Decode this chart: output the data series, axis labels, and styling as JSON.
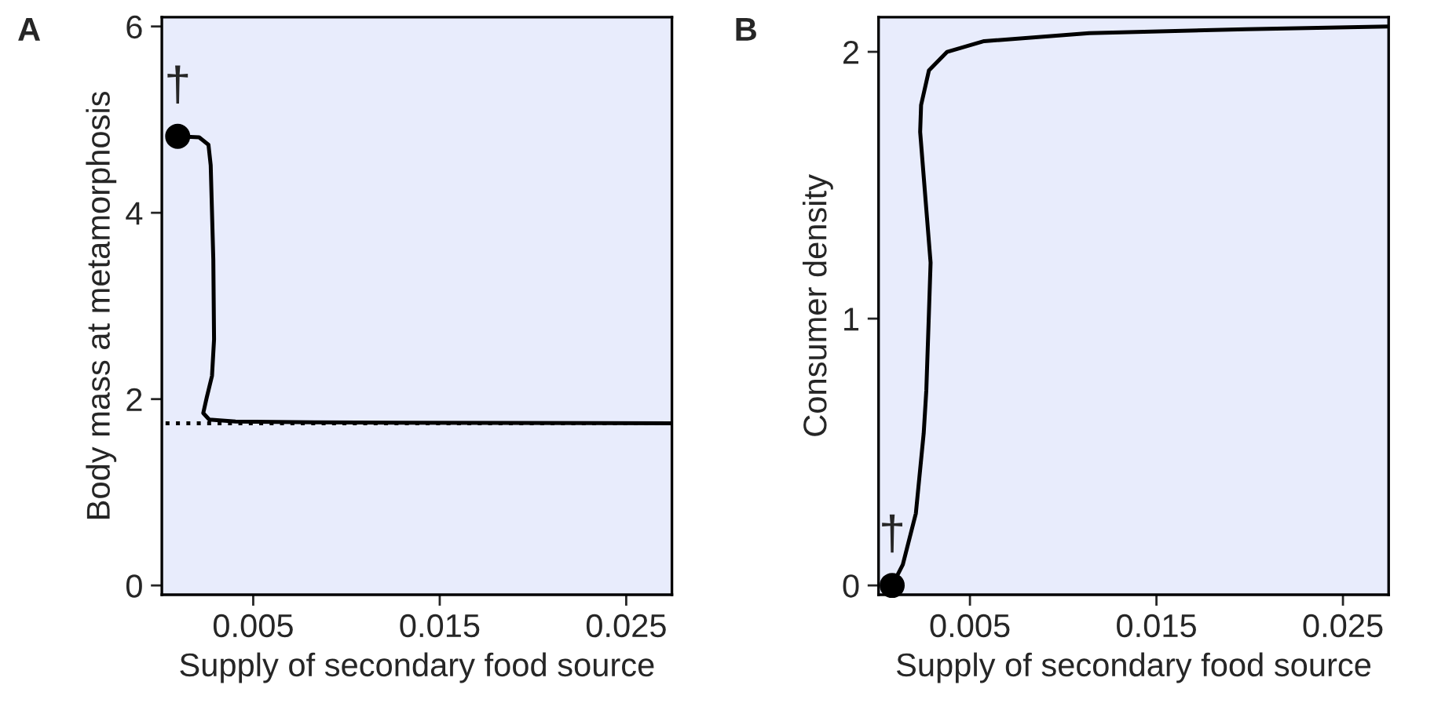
{
  "chart_data": [
    {
      "type": "line",
      "title": "A",
      "xlabel": "Supply of secondary food source",
      "ylabel": "Body mass at metamorphosis",
      "xlim": [
        0.0001,
        0.02745
      ],
      "ylim": [
        -0.1,
        6.1
      ],
      "xticks": [
        0.005,
        0.015,
        0.025
      ],
      "yticks": [
        0,
        2,
        4,
        6
      ],
      "grid": false,
      "legend": false,
      "series": [
        {
          "color": "#000000",
          "line_style": "dotted",
          "x": [
            0.0003,
            0.02745
          ],
          "values": [
            1.74,
            1.74
          ]
        },
        {
          "color": "#000000",
          "line_style": "solid",
          "x": [
            0.00095,
            0.0021,
            0.0026,
            0.00272,
            0.00286,
            0.0029,
            0.00279,
            0.00251,
            0.00232,
            0.00264,
            0.00405,
            0.0083,
            0.02745
          ],
          "values": [
            4.82,
            4.81,
            4.73,
            4.51,
            3.5,
            2.64,
            2.25,
            2.02,
            1.85,
            1.78,
            1.76,
            1.75,
            1.74
          ]
        },
        {
          "type": "scatter",
          "color": "#000000",
          "marker": "circle",
          "x": [
            0.00095
          ],
          "values": [
            4.82
          ]
        }
      ],
      "annotations": [
        {
          "text": "†",
          "x": 0.00095,
          "y": 4.82
        }
      ]
    },
    {
      "type": "line",
      "title": "B",
      "xlabel": "Supply of secondary food source",
      "ylabel": "Consumer density",
      "xlim": [
        0.0001,
        0.02745
      ],
      "ylim": [
        -0.035,
        2.13
      ],
      "xticks": [
        0.005,
        0.015,
        0.025
      ],
      "yticks": [
        0,
        1,
        2
      ],
      "grid": false,
      "legend": false,
      "series": [
        {
          "color": "#000000",
          "line_style": "solid",
          "x": [
            0.00083,
            0.0014,
            0.0021,
            0.00252,
            0.00266,
            0.0028,
            0.00289,
            0.00266,
            0.00233,
            0.00238,
            0.0028,
            0.00378,
            0.00576,
            0.0114,
            0.0198,
            0.02745
          ],
          "values": [
            0,
            0.078,
            0.27,
            0.57,
            0.73,
            1.02,
            1.21,
            1.41,
            1.7,
            1.8,
            1.93,
            2.0,
            2.04,
            2.07,
            2.085,
            2.095
          ]
        },
        {
          "type": "scatter",
          "color": "#000000",
          "marker": "circle",
          "x": [
            0.00083
          ],
          "values": [
            0
          ]
        }
      ],
      "annotations": [
        {
          "text": "†",
          "x": 0.00083,
          "y": 0
        }
      ]
    }
  ]
}
